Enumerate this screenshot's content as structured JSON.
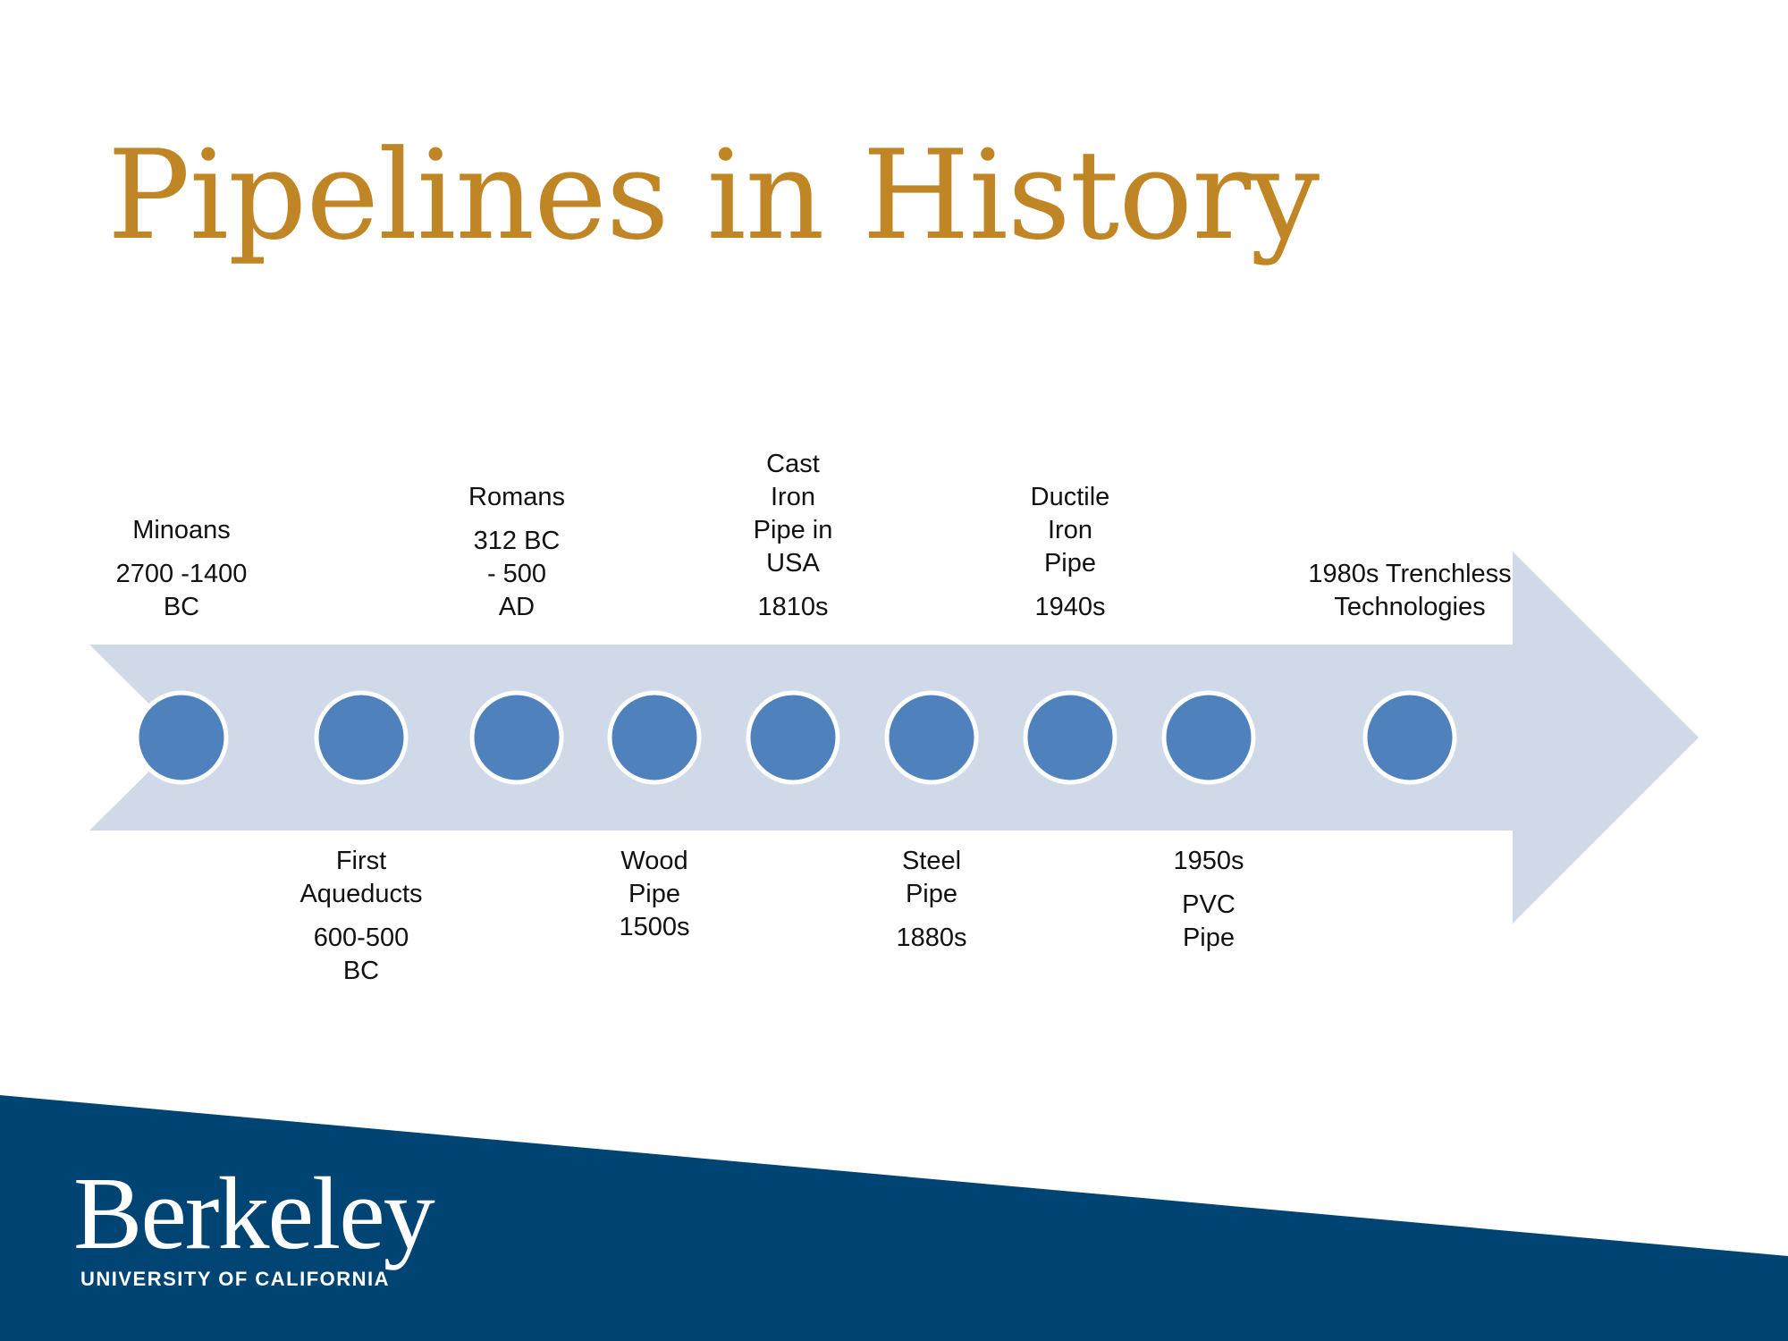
{
  "title": "Pipelines in History",
  "colors": {
    "title": "#C08626",
    "arrow": "#D0D9E8",
    "node_fill": "#4F81BD",
    "node_stroke": "#FFFFFF",
    "footer": "#004474"
  },
  "timeline": [
    {
      "position": "above",
      "line1": "Minoans",
      "line2": "2700 -1400\nBC"
    },
    {
      "position": "below",
      "line1": "First\nAqueducts",
      "line2": "600-500\nBC"
    },
    {
      "position": "above",
      "line1": "Romans",
      "line2": "312 BC\n- 500\nAD"
    },
    {
      "position": "below",
      "line1": "Wood\nPipe\n1500s",
      "line2": ""
    },
    {
      "position": "above",
      "line1": "Cast\nIron\nPipe in\nUSA",
      "line2": "1810s"
    },
    {
      "position": "below",
      "line1": "Steel\nPipe",
      "line2": "1880s"
    },
    {
      "position": "above",
      "line1": "Ductile\nIron\nPipe",
      "line2": "1940s"
    },
    {
      "position": "below",
      "line1": "1950s",
      "line2": "PVC\nPipe"
    },
    {
      "position": "above",
      "line1": "1980s Trenchless\nTechnologies",
      "line2": ""
    }
  ],
  "logo": {
    "wordmark": "Berkeley",
    "subtitle": "UNIVERSITY OF CALIFORNIA"
  }
}
